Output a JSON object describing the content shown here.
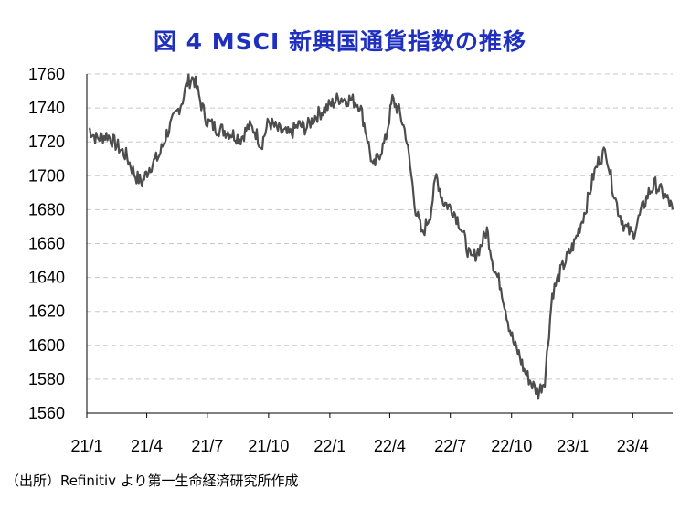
{
  "title": "図 4  MSCI 新興国通貨指数の推移",
  "source": "（出所）Refinitiv より第一生命経済研究所作成",
  "colors": {
    "title": "#1f2fbf",
    "line": "#4d4d4d",
    "grid": "#c8c8c8",
    "axis": "#000000"
  },
  "chart_data": {
    "type": "line",
    "title": "図 4  MSCI 新興国通貨指数の推移",
    "xlabel": "",
    "ylabel": "",
    "ylim": [
      1560,
      1760
    ],
    "yticks": [
      1560,
      1580,
      1600,
      1620,
      1640,
      1660,
      1680,
      1700,
      1720,
      1740,
      1760
    ],
    "xlim": [
      "2021-01-01",
      "2023-05-31"
    ],
    "xticks": [
      "21/1",
      "21/4",
      "21/7",
      "21/10",
      "22/1",
      "22/4",
      "22/7",
      "22/10",
      "23/1",
      "23/4"
    ],
    "grid": "horizontal-dashed",
    "legend": "none",
    "series": [
      {
        "name": "",
        "x": [
          "2021-01-04",
          "2021-01-15",
          "2021-02-01",
          "2021-02-15",
          "2021-03-01",
          "2021-03-15",
          "2021-03-25",
          "2021-04-05",
          "2021-04-20",
          "2021-05-01",
          "2021-05-15",
          "2021-05-25",
          "2021-06-01",
          "2021-06-10",
          "2021-06-15",
          "2021-06-22",
          "2021-07-01",
          "2021-07-15",
          "2021-08-01",
          "2021-08-20",
          "2021-09-01",
          "2021-09-10",
          "2021-09-20",
          "2021-10-01",
          "2021-10-15",
          "2021-11-01",
          "2021-11-15",
          "2021-11-26",
          "2021-12-10",
          "2021-12-20",
          "2022-01-03",
          "2022-01-15",
          "2022-02-01",
          "2022-02-15",
          "2022-02-25",
          "2022-03-07",
          "2022-03-15",
          "2022-03-25",
          "2022-04-05",
          "2022-04-15",
          "2022-04-25",
          "2022-05-10",
          "2022-05-20",
          "2022-06-01",
          "2022-06-10",
          "2022-06-20",
          "2022-07-05",
          "2022-07-15",
          "2022-08-01",
          "2022-08-15",
          "2022-08-25",
          "2022-09-05",
          "2022-09-15",
          "2022-09-27",
          "2022-10-05",
          "2022-10-12",
          "2022-10-20",
          "2022-11-01",
          "2022-11-10",
          "2022-11-20",
          "2022-12-01",
          "2022-12-15",
          "2023-01-03",
          "2023-01-20",
          "2023-02-01",
          "2023-02-10",
          "2023-02-20",
          "2023-03-01",
          "2023-03-10",
          "2023-03-20",
          "2023-04-01",
          "2023-04-15",
          "2023-04-25",
          "2023-05-05",
          "2023-05-15",
          "2023-05-25",
          "2023-05-31"
        ],
        "values": [
          1728,
          1722,
          1724,
          1718,
          1712,
          1700,
          1696,
          1705,
          1712,
          1725,
          1736,
          1745,
          1755,
          1758,
          1752,
          1742,
          1732,
          1728,
          1726,
          1722,
          1729,
          1727,
          1718,
          1732,
          1727,
          1724,
          1730,
          1728,
          1735,
          1738,
          1742,
          1746,
          1745,
          1742,
          1725,
          1704,
          1712,
          1720,
          1745,
          1738,
          1725,
          1680,
          1665,
          1678,
          1700,
          1685,
          1680,
          1672,
          1650,
          1658,
          1668,
          1645,
          1635,
          1612,
          1600,
          1595,
          1585,
          1577,
          1572,
          1580,
          1630,
          1645,
          1660,
          1680,
          1700,
          1710,
          1715,
          1695,
          1680,
          1670,
          1665,
          1680,
          1690,
          1695,
          1690,
          1685,
          1680
        ]
      }
    ]
  }
}
